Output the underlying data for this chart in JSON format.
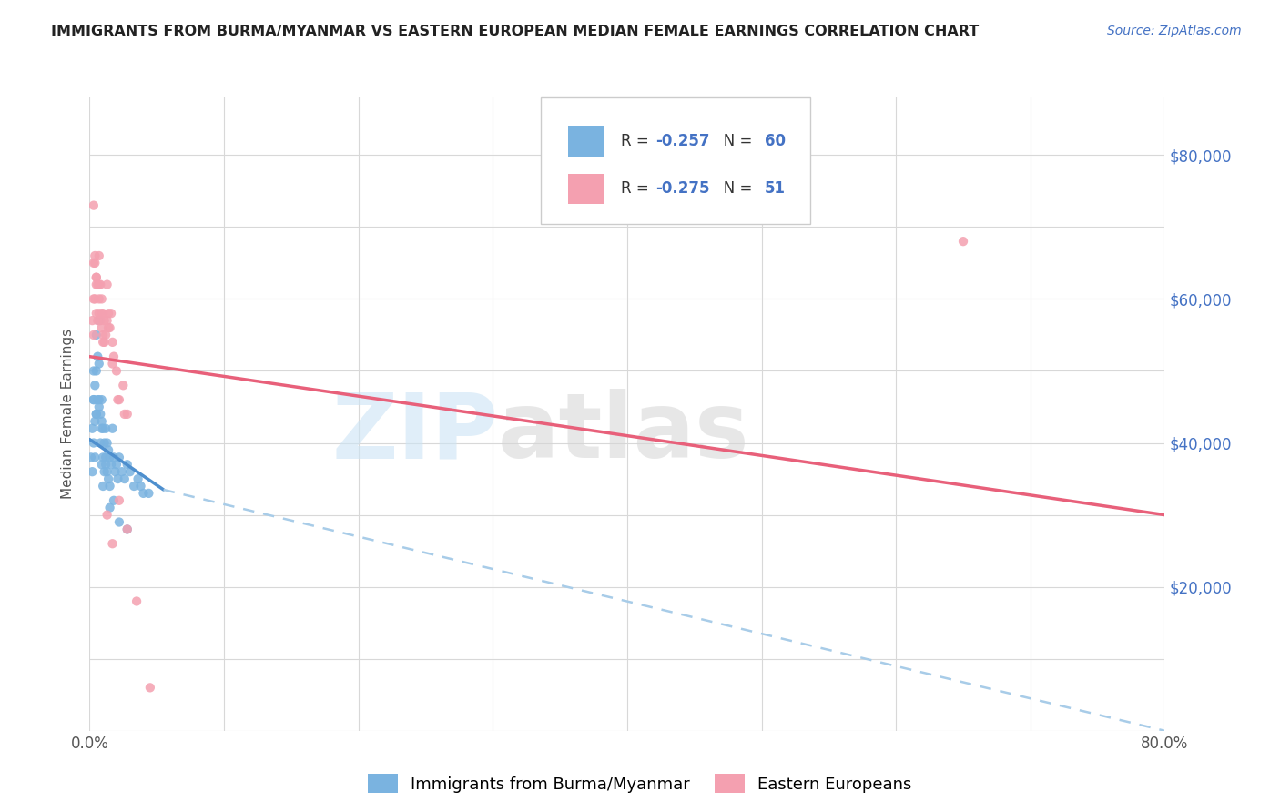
{
  "title": "IMMIGRANTS FROM BURMA/MYANMAR VS EASTERN EUROPEAN MEDIAN FEMALE EARNINGS CORRELATION CHART",
  "source": "Source: ZipAtlas.com",
  "ylabel": "Median Female Earnings",
  "xlim": [
    0.0,
    0.8
  ],
  "ylim": [
    0,
    88000
  ],
  "series1_color": "#7ab3e0",
  "series1_line_color": "#4e8fce",
  "series2_color": "#f4a0b0",
  "series2_line_color": "#e8607a",
  "trendline1_dash_color": "#a8cce8",
  "background_color": "#ffffff",
  "grid_color": "#d8d8d8",
  "series1_R": -0.257,
  "series1_N": 60,
  "series2_R": -0.275,
  "series2_N": 51,
  "blue_label": "R = -0.257   N = 60",
  "pink_label": "R = -0.275   N = 51",
  "blue_legend": "Immigrants from Burma/Myanmar",
  "pink_legend": "Eastern Europeans",
  "series1_x": [
    0.001,
    0.002,
    0.002,
    0.003,
    0.003,
    0.003,
    0.004,
    0.004,
    0.004,
    0.005,
    0.005,
    0.005,
    0.006,
    0.006,
    0.007,
    0.007,
    0.007,
    0.008,
    0.008,
    0.009,
    0.009,
    0.009,
    0.01,
    0.01,
    0.01,
    0.011,
    0.011,
    0.012,
    0.012,
    0.013,
    0.013,
    0.014,
    0.014,
    0.015,
    0.015,
    0.016,
    0.017,
    0.018,
    0.019,
    0.02,
    0.021,
    0.022,
    0.024,
    0.026,
    0.028,
    0.03,
    0.033,
    0.036,
    0.04,
    0.044,
    0.003,
    0.005,
    0.007,
    0.009,
    0.012,
    0.015,
    0.018,
    0.022,
    0.028,
    0.038
  ],
  "series1_y": [
    38000,
    42000,
    36000,
    50000,
    46000,
    40000,
    48000,
    43000,
    38000,
    55000,
    50000,
    44000,
    52000,
    46000,
    57000,
    51000,
    45000,
    44000,
    40000,
    46000,
    42000,
    37000,
    42000,
    38000,
    34000,
    40000,
    36000,
    42000,
    37000,
    40000,
    36000,
    39000,
    35000,
    38000,
    34000,
    37000,
    42000,
    38000,
    36000,
    37000,
    35000,
    38000,
    36000,
    35000,
    37000,
    36000,
    34000,
    35000,
    33000,
    33000,
    46000,
    44000,
    46000,
    43000,
    38000,
    31000,
    32000,
    29000,
    28000,
    34000
  ],
  "series2_x": [
    0.002,
    0.003,
    0.003,
    0.004,
    0.004,
    0.005,
    0.005,
    0.006,
    0.006,
    0.007,
    0.007,
    0.008,
    0.008,
    0.009,
    0.009,
    0.01,
    0.01,
    0.011,
    0.012,
    0.013,
    0.013,
    0.014,
    0.015,
    0.016,
    0.017,
    0.018,
    0.02,
    0.022,
    0.025,
    0.028,
    0.003,
    0.004,
    0.005,
    0.007,
    0.009,
    0.011,
    0.014,
    0.017,
    0.021,
    0.026,
    0.003,
    0.005,
    0.007,
    0.01,
    0.013,
    0.017,
    0.022,
    0.028,
    0.035,
    0.045,
    0.65
  ],
  "series2_y": [
    57000,
    60000,
    55000,
    65000,
    60000,
    63000,
    58000,
    62000,
    57000,
    66000,
    60000,
    62000,
    57000,
    60000,
    56000,
    58000,
    54000,
    57000,
    55000,
    57000,
    62000,
    58000,
    56000,
    58000,
    54000,
    52000,
    50000,
    46000,
    48000,
    44000,
    73000,
    66000,
    63000,
    62000,
    58000,
    54000,
    56000,
    51000,
    46000,
    44000,
    65000,
    62000,
    58000,
    55000,
    30000,
    26000,
    32000,
    28000,
    18000,
    6000,
    68000
  ],
  "trend1_x0": 0.0,
  "trend1_y0": 40500,
  "trend1_x1": 0.055,
  "trend1_y1": 33500,
  "trend1_dash_x0": 0.055,
  "trend1_dash_y0": 33500,
  "trend1_dash_x1": 0.8,
  "trend1_dash_y1": 0,
  "trend2_x0": 0.0,
  "trend2_y0": 52000,
  "trend2_x1": 0.8,
  "trend2_y1": 30000
}
